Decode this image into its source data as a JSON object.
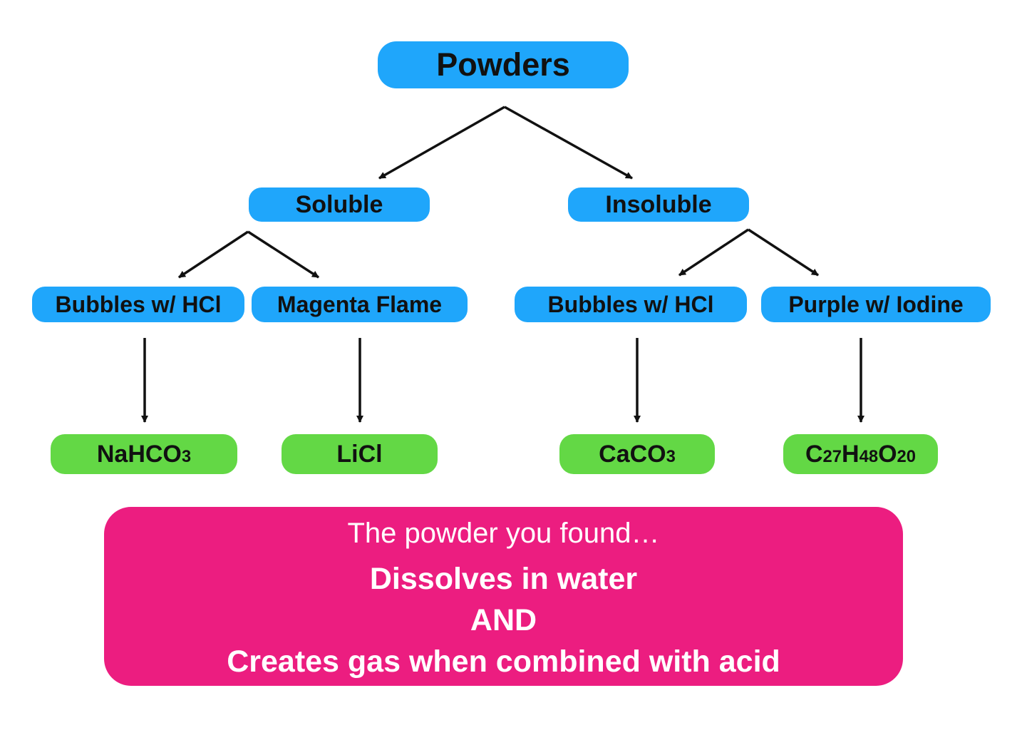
{
  "colors": {
    "category_node": "#1fa6fb",
    "result_node": "#63d845",
    "callout": "#ec1d80",
    "arrow": "#111111"
  },
  "root": {
    "label": "Powders"
  },
  "categories": [
    {
      "label": "Soluble"
    },
    {
      "label": "Insoluble"
    }
  ],
  "tests": [
    {
      "label": "Bubbles w/ HCl"
    },
    {
      "label": "Magenta Flame"
    },
    {
      "label": "Bubbles w/ HCl"
    },
    {
      "label": "Purple w/ Iodine"
    }
  ],
  "results": [
    {
      "parts": [
        "NaHCO",
        "3"
      ]
    },
    {
      "parts": [
        "LiCl"
      ]
    },
    {
      "parts": [
        "CaCO",
        "3"
      ]
    },
    {
      "parts": [
        "C",
        "27",
        "H",
        "48",
        "O",
        "20"
      ]
    }
  ],
  "callout": {
    "intro": "The powder you found…",
    "line1": "Dissolves in water",
    "line2": "AND",
    "line3": "Creates gas when combined with acid"
  }
}
